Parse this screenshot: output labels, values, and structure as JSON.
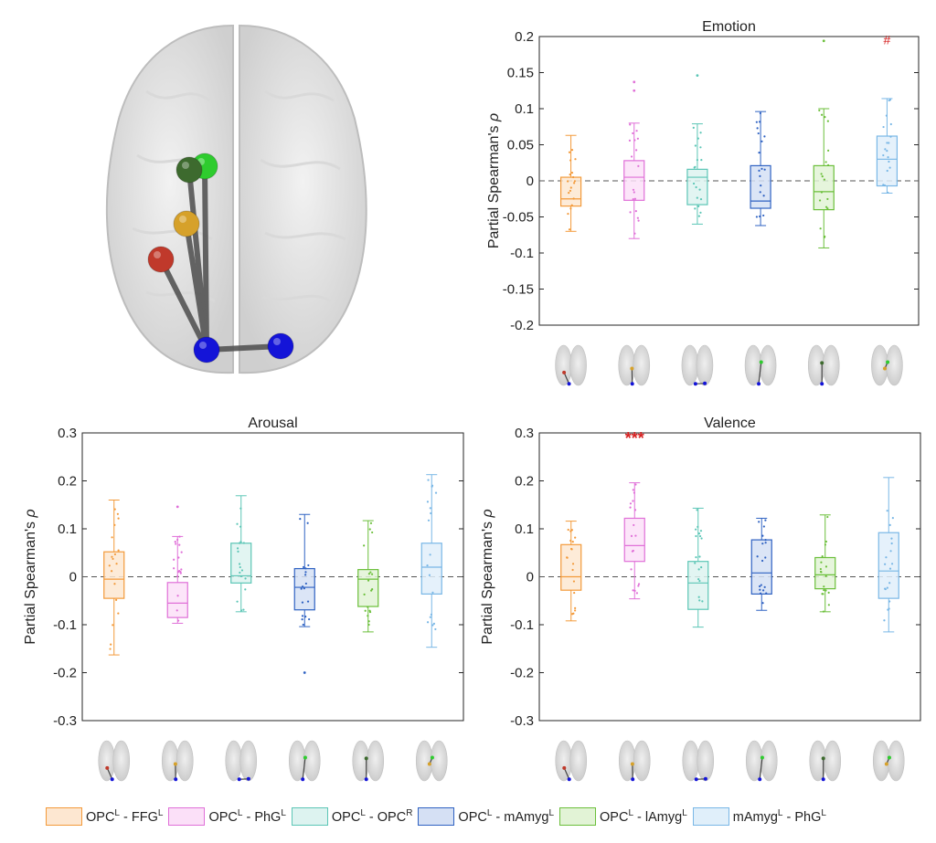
{
  "legend": {
    "items": [
      {
        "from": "OPC",
        "from_sup": "L",
        "sep": " - ",
        "to": "FFG",
        "to_sup": "L",
        "color": "#F39A3A",
        "fill": "#FDE7D1"
      },
      {
        "from": "OPC",
        "from_sup": "L",
        "sep": " - ",
        "to": "PhG",
        "to_sup": "L",
        "color": "#E070D8",
        "fill": "#FBE0F8"
      },
      {
        "from": "OPC",
        "from_sup": "L",
        "sep": " - ",
        "to": "OPC",
        "to_sup": "R",
        "color": "#5CC6B6",
        "fill": "#DDF3F0"
      },
      {
        "from": "OPC",
        "from_sup": "L",
        "sep": " - ",
        "to": "mAmyg",
        "to_sup": "L",
        "color": "#2F62C2",
        "fill": "#D5E0F4"
      },
      {
        "from": "OPC",
        "from_sup": "L",
        "sep": " - ",
        "to": "lAmyg",
        "to_sup": "L",
        "color": "#6BBF3A",
        "fill": "#E2F3D6"
      },
      {
        "from": "mAmyg",
        "from_sup": "L",
        "sep": " - ",
        "to": "PhG",
        "to_sup": "L",
        "color": "#79B7E6",
        "fill": "#E0EFFA"
      }
    ]
  },
  "brain_illustration": {
    "icon": "brain-connectivity-icon",
    "nodes": [
      {
        "name": "node-green-light",
        "color": "#2ecc2e"
      },
      {
        "name": "node-green-dark",
        "color": "#3d6a2e"
      },
      {
        "name": "node-orange",
        "color": "#d6a12a"
      },
      {
        "name": "node-red",
        "color": "#c0392b"
      },
      {
        "name": "node-blue-left",
        "color": "#1414d8"
      },
      {
        "name": "node-blue-right",
        "color": "#1414d8"
      }
    ]
  },
  "chart_data": [
    {
      "type": "box",
      "title": "Emotion",
      "ylabel": "Partial Spearman's",
      "ylabel_symbol": "ρ",
      "ylim": [
        -0.2,
        0.2
      ],
      "yticks": [
        "-0.2",
        "-0.15",
        "-0.1",
        "-0.05",
        "0",
        "0.05",
        "0.1",
        "0.15",
        "0.2"
      ],
      "yticks_values": [
        -0.2,
        -0.15,
        -0.1,
        -0.05,
        0,
        0.05,
        0.1,
        0.15,
        0.2
      ],
      "reference_line": 0,
      "boxes": [
        {
          "q1": -0.035,
          "median": -0.025,
          "q3": 0.005,
          "whisker_low": -0.07,
          "whisker_high": 0.063,
          "outliers": []
        },
        {
          "q1": -0.027,
          "median": 0.005,
          "q3": 0.028,
          "whisker_low": -0.08,
          "whisker_high": 0.08,
          "outliers": [
            0.125,
            0.137
          ]
        },
        {
          "q1": -0.033,
          "median": 0.005,
          "q3": 0.016,
          "whisker_low": -0.06,
          "whisker_high": 0.079,
          "outliers": [
            0.146
          ]
        },
        {
          "q1": -0.038,
          "median": -0.028,
          "q3": 0.021,
          "whisker_low": -0.062,
          "whisker_high": 0.096,
          "outliers": []
        },
        {
          "q1": -0.04,
          "median": -0.015,
          "q3": 0.021,
          "whisker_low": -0.093,
          "whisker_high": 0.1,
          "outliers": [
            0.194
          ]
        },
        {
          "q1": -0.007,
          "median": 0.03,
          "q3": 0.062,
          "whisker_low": -0.017,
          "whisker_high": 0.114,
          "outliers": []
        }
      ],
      "annotations": [
        {
          "box": 5,
          "text": "#",
          "y": 0.194
        }
      ]
    },
    {
      "type": "box",
      "title": "Arousal",
      "ylabel": "Partial Spearman's",
      "ylabel_symbol": "ρ",
      "ylim": [
        -0.3,
        0.3
      ],
      "yticks": [
        "-0.3",
        "-0.2",
        "-0.1",
        "0",
        "0.1",
        "0.2",
        "0.3"
      ],
      "yticks_values": [
        -0.3,
        -0.2,
        -0.1,
        0,
        0.1,
        0.2,
        0.3
      ],
      "reference_line": 0,
      "boxes": [
        {
          "q1": -0.045,
          "median": -0.005,
          "q3": 0.052,
          "whisker_low": -0.163,
          "whisker_high": 0.16,
          "outliers": []
        },
        {
          "q1": -0.085,
          "median": -0.055,
          "q3": -0.012,
          "whisker_low": -0.097,
          "whisker_high": 0.084,
          "outliers": [
            0.146
          ]
        },
        {
          "q1": -0.013,
          "median": 0.002,
          "q3": 0.07,
          "whisker_low": -0.073,
          "whisker_high": 0.169,
          "outliers": []
        },
        {
          "q1": -0.069,
          "median": -0.022,
          "q3": 0.017,
          "whisker_low": -0.104,
          "whisker_high": 0.13,
          "outliers": [
            -0.2
          ]
        },
        {
          "q1": -0.062,
          "median": -0.005,
          "q3": 0.015,
          "whisker_low": -0.115,
          "whisker_high": 0.117,
          "outliers": []
        },
        {
          "q1": -0.036,
          "median": 0.02,
          "q3": 0.07,
          "whisker_low": -0.147,
          "whisker_high": 0.213,
          "outliers": []
        }
      ],
      "annotations": []
    },
    {
      "type": "box",
      "title": "Valence",
      "ylabel": "Partial Spearman's",
      "ylabel_symbol": "ρ",
      "ylim": [
        -0.3,
        0.3
      ],
      "yticks": [
        "-0.3",
        "-0.2",
        "-0.1",
        "0",
        "0.1",
        "0.2",
        "0.3"
      ],
      "yticks_values": [
        -0.3,
        -0.2,
        -0.1,
        0,
        0.1,
        0.2,
        0.3
      ],
      "reference_line": 0,
      "boxes": [
        {
          "q1": -0.028,
          "median": 0.0,
          "q3": 0.067,
          "whisker_low": -0.092,
          "whisker_high": 0.116,
          "outliers": []
        },
        {
          "q1": 0.032,
          "median": 0.065,
          "q3": 0.122,
          "whisker_low": -0.046,
          "whisker_high": 0.196,
          "outliers": []
        },
        {
          "q1": -0.068,
          "median": -0.013,
          "q3": 0.032,
          "whisker_low": -0.105,
          "whisker_high": 0.143,
          "outliers": []
        },
        {
          "q1": -0.036,
          "median": 0.008,
          "q3": 0.077,
          "whisker_low": -0.07,
          "whisker_high": 0.122,
          "outliers": []
        },
        {
          "q1": -0.025,
          "median": 0.004,
          "q3": 0.04,
          "whisker_low": -0.073,
          "whisker_high": 0.129,
          "outliers": []
        },
        {
          "q1": -0.045,
          "median": 0.012,
          "q3": 0.092,
          "whisker_low": -0.115,
          "whisker_high": 0.207,
          "outliers": []
        }
      ],
      "annotations": [
        {
          "box": 1,
          "text": "***",
          "y": 0.3
        }
      ]
    }
  ]
}
